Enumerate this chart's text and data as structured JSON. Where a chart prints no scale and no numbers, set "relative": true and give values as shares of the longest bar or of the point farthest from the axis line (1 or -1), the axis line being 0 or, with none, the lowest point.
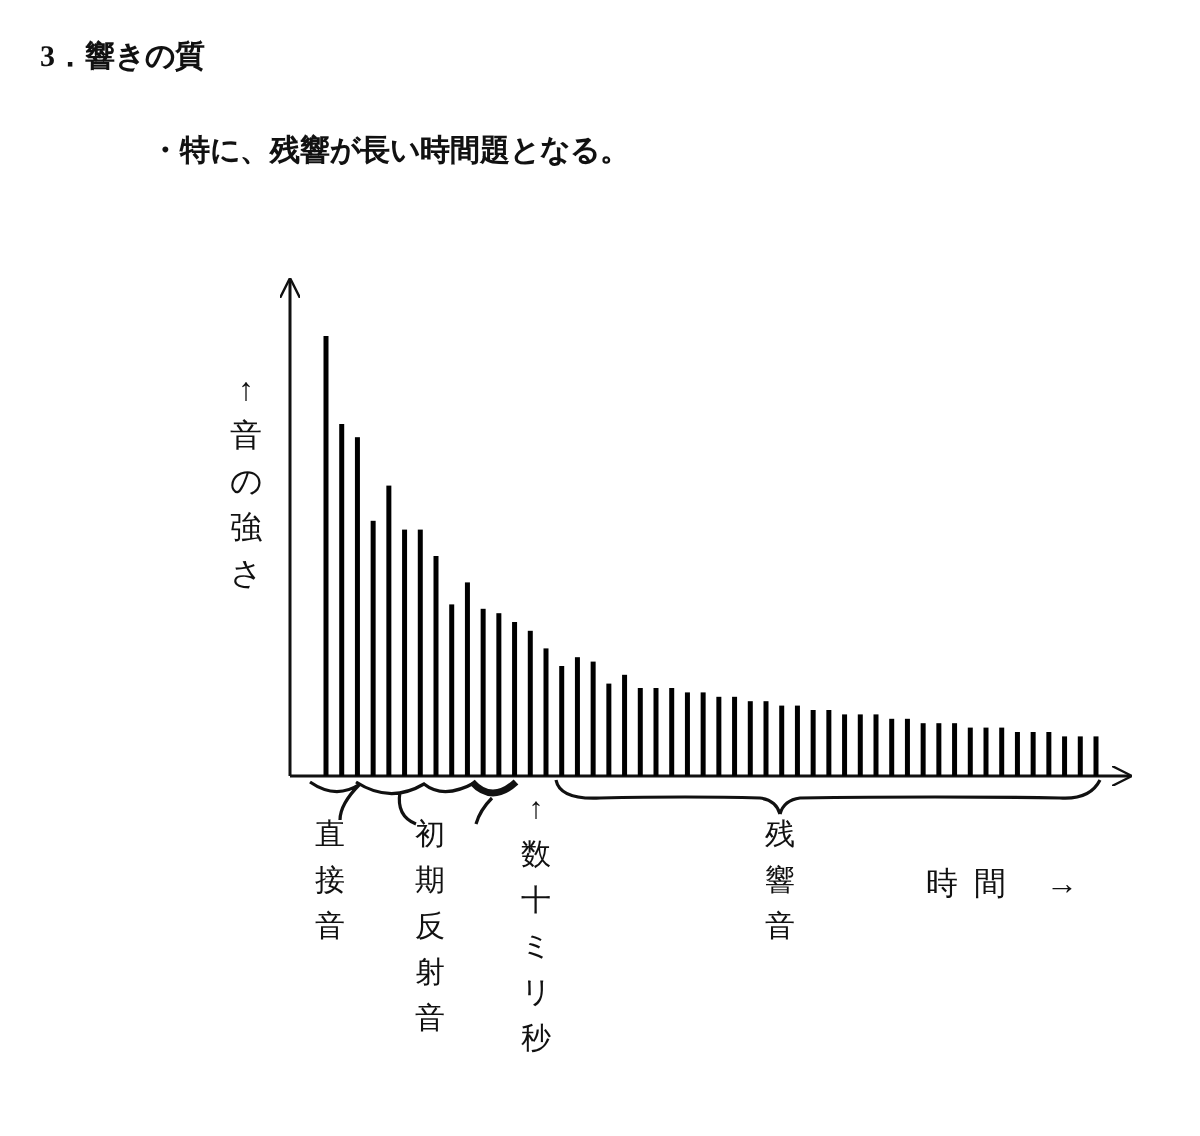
{
  "chart_data": {
    "type": "bar",
    "relative": true,
    "title": "3．響きの質",
    "subtitle": "・特に、残響が長い時間題となる。",
    "xlabel": "時間 →",
    "ylabel": "↑音の強さ",
    "color": "#000000",
    "annotations": [
      "直接音",
      "初期反射音",
      "↑数十ミリ秒",
      "残響音"
    ],
    "categories": [
      null,
      null,
      null,
      null,
      null,
      null,
      null,
      null,
      null,
      null,
      null,
      null,
      null,
      null,
      null,
      null,
      null,
      null,
      null,
      null,
      null,
      null,
      null,
      null,
      null,
      null,
      null,
      null,
      null,
      null,
      null,
      null,
      null,
      null,
      null,
      null,
      null,
      null,
      null,
      null,
      null,
      null,
      null,
      null,
      null,
      null,
      null,
      null,
      null,
      null
    ],
    "values": [
      1.0,
      0.8,
      0.77,
      0.58,
      0.66,
      0.56,
      0.56,
      0.5,
      0.39,
      0.44,
      0.38,
      0.37,
      0.35,
      0.33,
      0.29,
      0.25,
      0.27,
      0.26,
      0.21,
      0.23,
      0.2,
      0.2,
      0.2,
      0.19,
      0.19,
      0.18,
      0.18,
      0.17,
      0.17,
      0.16,
      0.16,
      0.15,
      0.15,
      0.14,
      0.14,
      0.14,
      0.13,
      0.13,
      0.12,
      0.12,
      0.12,
      0.11,
      0.11,
      0.11,
      0.1,
      0.1,
      0.1,
      0.09,
      0.09,
      0.09
    ]
  }
}
